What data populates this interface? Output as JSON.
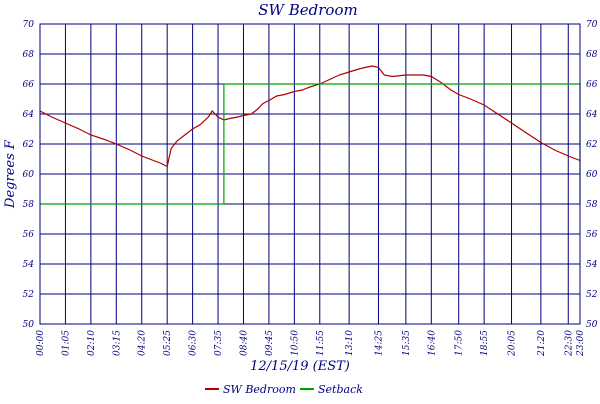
{
  "chart_data": {
    "type": "line",
    "title": "SW Bedroom",
    "ylabel": "Degrees F",
    "xlabel": "12/15/19 (EST)",
    "ylim": [
      50,
      70
    ],
    "y_ticks": [
      50,
      52,
      54,
      56,
      58,
      60,
      62,
      64,
      66,
      68,
      70
    ],
    "x_range_minutes": [
      0,
      1380
    ],
    "x_tick_labels": [
      "00:00",
      "01:05",
      "02:10",
      "03:15",
      "04:20",
      "05:25",
      "06:30",
      "07:35",
      "08:40",
      "09:45",
      "10:50",
      "11:55",
      "13:10",
      "14:25",
      "15:35",
      "16:40",
      "17:50",
      "18:55",
      "20:05",
      "21:20",
      "22:30",
      "23:00"
    ],
    "grid": true,
    "legend_position": "bottom",
    "series": [
      {
        "name": "SW Bedroom",
        "color": "#b00000",
        "points": [
          [
            "00:00",
            64.2
          ],
          [
            "00:30",
            63.8
          ],
          [
            "01:05",
            63.4
          ],
          [
            "01:40",
            63.0
          ],
          [
            "02:10",
            62.6
          ],
          [
            "02:45",
            62.3
          ],
          [
            "03:15",
            62.0
          ],
          [
            "03:50",
            61.6
          ],
          [
            "04:20",
            61.2
          ],
          [
            "04:50",
            60.9
          ],
          [
            "05:10",
            60.7
          ],
          [
            "05:25",
            60.5
          ],
          [
            "05:35",
            61.7
          ],
          [
            "05:50",
            62.2
          ],
          [
            "06:10",
            62.6
          ],
          [
            "06:30",
            63.0
          ],
          [
            "06:50",
            63.3
          ],
          [
            "07:10",
            63.8
          ],
          [
            "07:20",
            64.2
          ],
          [
            "07:35",
            63.8
          ],
          [
            "07:50",
            63.6
          ],
          [
            "08:05",
            63.7
          ],
          [
            "08:25",
            63.8
          ],
          [
            "08:40",
            63.9
          ],
          [
            "09:00",
            64.0
          ],
          [
            "09:15",
            64.3
          ],
          [
            "09:30",
            64.7
          ],
          [
            "09:45",
            64.9
          ],
          [
            "10:05",
            65.2
          ],
          [
            "10:25",
            65.3
          ],
          [
            "10:50",
            65.5
          ],
          [
            "11:10",
            65.6
          ],
          [
            "11:30",
            65.8
          ],
          [
            "11:55",
            66.0
          ],
          [
            "12:20",
            66.3
          ],
          [
            "12:45",
            66.6
          ],
          [
            "13:10",
            66.8
          ],
          [
            "13:35",
            67.0
          ],
          [
            "13:50",
            67.1
          ],
          [
            "14:10",
            67.2
          ],
          [
            "14:25",
            67.1
          ],
          [
            "14:40",
            66.6
          ],
          [
            "15:00",
            66.5
          ],
          [
            "15:35",
            66.6
          ],
          [
            "16:00",
            66.6
          ],
          [
            "16:20",
            66.6
          ],
          [
            "16:40",
            66.5
          ],
          [
            "17:05",
            66.1
          ],
          [
            "17:30",
            65.6
          ],
          [
            "17:50",
            65.3
          ],
          [
            "18:20",
            65.0
          ],
          [
            "18:55",
            64.6
          ],
          [
            "19:30",
            64.0
          ],
          [
            "20:05",
            63.4
          ],
          [
            "20:45",
            62.7
          ],
          [
            "21:20",
            62.1
          ],
          [
            "21:55",
            61.6
          ],
          [
            "22:30",
            61.2
          ],
          [
            "22:50",
            61.0
          ],
          [
            "23:00",
            60.9
          ]
        ]
      },
      {
        "name": "Setback",
        "color": "#00a000",
        "points": [
          [
            "00:00",
            58
          ],
          [
            "07:50",
            58
          ],
          [
            "07:50",
            66
          ],
          [
            "23:00",
            66
          ],
          [
            "23:00",
            58
          ]
        ]
      }
    ]
  }
}
